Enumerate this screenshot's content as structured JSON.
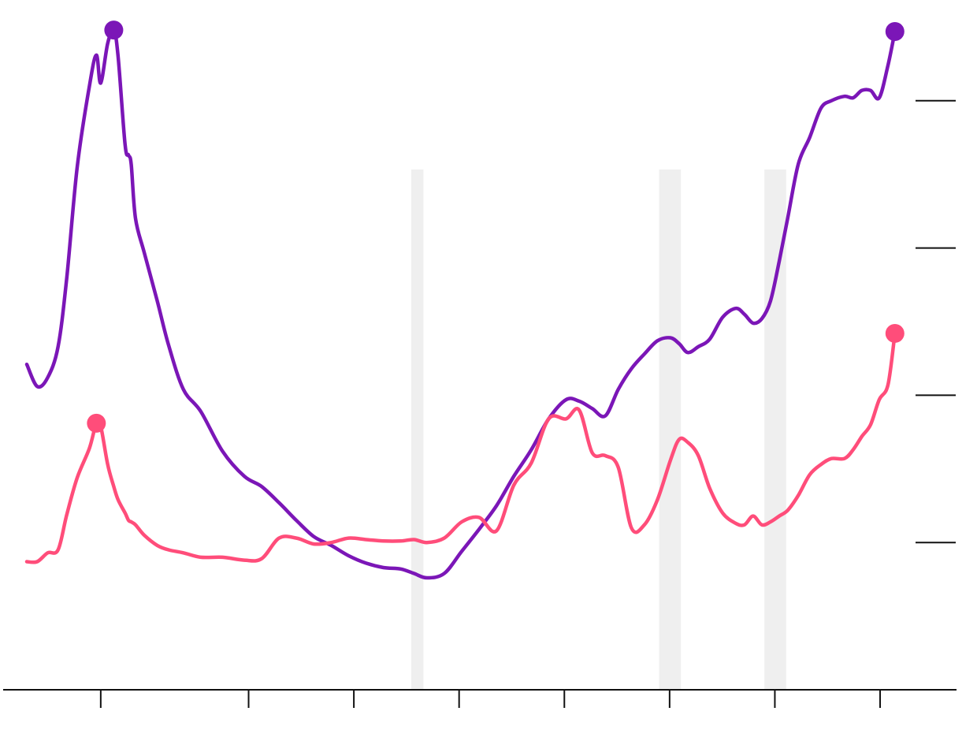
{
  "chart_data": {
    "type": "line",
    "title": "",
    "xlabel": "",
    "ylabel": "",
    "ylim": [
      0,
      4
    ],
    "xlim": [
      0,
      1
    ],
    "grid": false,
    "legend": "none",
    "y_ticks": [
      1,
      2,
      3,
      4
    ],
    "x_ticks": [
      0.085,
      0.255,
      0.376,
      0.497,
      0.618,
      0.739,
      0.86,
      0.981
    ],
    "shaded_bands": [
      {
        "x0": 0.442,
        "x1": 0.456
      },
      {
        "x0": 0.727,
        "x1": 0.752
      },
      {
        "x0": 0.848,
        "x1": 0.873
      }
    ],
    "series": [
      {
        "color": "#7b16b7",
        "end_markers": true,
        "points": [
          [
            0,
            2.21
          ],
          [
            0.012,
            2.06
          ],
          [
            0.024,
            2.12
          ],
          [
            0.036,
            2.33
          ],
          [
            0.046,
            2.8
          ],
          [
            0.058,
            3.55
          ],
          [
            0.072,
            4.1
          ],
          [
            0.08,
            4.31
          ],
          [
            0.085,
            4.12
          ],
          [
            0.093,
            4.39
          ],
          [
            0.1,
            4.48
          ],
          [
            0.105,
            4.3
          ],
          [
            0.113,
            3.7
          ],
          [
            0.117,
            3.63
          ],
          [
            0.12,
            3.57
          ],
          [
            0.125,
            3.2
          ],
          [
            0.135,
            2.97
          ],
          [
            0.15,
            2.64
          ],
          [
            0.163,
            2.34
          ],
          [
            0.18,
            2.04
          ],
          [
            0.2,
            1.89
          ],
          [
            0.225,
            1.62
          ],
          [
            0.25,
            1.45
          ],
          [
            0.27,
            1.38
          ],
          [
            0.29,
            1.27
          ],
          [
            0.31,
            1.15
          ],
          [
            0.33,
            1.04
          ],
          [
            0.35,
            0.98
          ],
          [
            0.37,
            0.91
          ],
          [
            0.39,
            0.86
          ],
          [
            0.41,
            0.83
          ],
          [
            0.43,
            0.82
          ],
          [
            0.445,
            0.79
          ],
          [
            0.46,
            0.76
          ],
          [
            0.48,
            0.79
          ],
          [
            0.5,
            0.94
          ],
          [
            0.52,
            1.09
          ],
          [
            0.54,
            1.25
          ],
          [
            0.56,
            1.45
          ],
          [
            0.58,
            1.63
          ],
          [
            0.6,
            1.84
          ],
          [
            0.62,
            1.97
          ],
          [
            0.635,
            1.96
          ],
          [
            0.65,
            1.91
          ],
          [
            0.665,
            1.86
          ],
          [
            0.68,
            2.04
          ],
          [
            0.695,
            2.18
          ],
          [
            0.71,
            2.28
          ],
          [
            0.725,
            2.37
          ],
          [
            0.74,
            2.39
          ],
          [
            0.75,
            2.35
          ],
          [
            0.76,
            2.29
          ],
          [
            0.772,
            2.33
          ],
          [
            0.785,
            2.38
          ],
          [
            0.8,
            2.53
          ],
          [
            0.815,
            2.59
          ],
          [
            0.825,
            2.55
          ],
          [
            0.835,
            2.49
          ],
          [
            0.845,
            2.52
          ],
          [
            0.855,
            2.64
          ],
          [
            0.865,
            2.91
          ],
          [
            0.875,
            3.21
          ],
          [
            0.887,
            3.57
          ],
          [
            0.9,
            3.75
          ],
          [
            0.913,
            3.95
          ],
          [
            0.925,
            4.0
          ],
          [
            0.94,
            4.03
          ],
          [
            0.95,
            4.02
          ],
          [
            0.96,
            4.07
          ],
          [
            0.97,
            4.07
          ],
          [
            0.98,
            4.02
          ],
          [
            0.99,
            4.24
          ],
          [
            0.998,
            4.47
          ]
        ]
      },
      {
        "color": "#ff4d7a",
        "end_markers": true,
        "points": [
          [
            0,
            0.87
          ],
          [
            0.012,
            0.87
          ],
          [
            0.024,
            0.93
          ],
          [
            0.036,
            0.95
          ],
          [
            0.046,
            1.19
          ],
          [
            0.058,
            1.44
          ],
          [
            0.072,
            1.64
          ],
          [
            0.08,
            1.81
          ],
          [
            0.085,
            1.79
          ],
          [
            0.093,
            1.53
          ],
          [
            0.1,
            1.38
          ],
          [
            0.105,
            1.29
          ],
          [
            0.113,
            1.2
          ],
          [
            0.117,
            1.15
          ],
          [
            0.12,
            1.14
          ],
          [
            0.125,
            1.12
          ],
          [
            0.135,
            1.05
          ],
          [
            0.15,
            0.98
          ],
          [
            0.163,
            0.95
          ],
          [
            0.18,
            0.93
          ],
          [
            0.2,
            0.9
          ],
          [
            0.225,
            0.9
          ],
          [
            0.25,
            0.88
          ],
          [
            0.27,
            0.89
          ],
          [
            0.29,
            1.03
          ],
          [
            0.31,
            1.03
          ],
          [
            0.33,
            0.99
          ],
          [
            0.35,
            1.0
          ],
          [
            0.37,
            1.03
          ],
          [
            0.39,
            1.02
          ],
          [
            0.41,
            1.01
          ],
          [
            0.43,
            1.01
          ],
          [
            0.445,
            1.02
          ],
          [
            0.46,
            1.0
          ],
          [
            0.48,
            1.03
          ],
          [
            0.5,
            1.14
          ],
          [
            0.52,
            1.17
          ],
          [
            0.54,
            1.08
          ],
          [
            0.56,
            1.39
          ],
          [
            0.58,
            1.54
          ],
          [
            0.6,
            1.84
          ],
          [
            0.62,
            1.84
          ],
          [
            0.635,
            1.9
          ],
          [
            0.65,
            1.61
          ],
          [
            0.665,
            1.59
          ],
          [
            0.68,
            1.51
          ],
          [
            0.695,
            1.1
          ],
          [
            0.71,
            1.12
          ],
          [
            0.725,
            1.29
          ],
          [
            0.74,
            1.56
          ],
          [
            0.75,
            1.7
          ],
          [
            0.76,
            1.68
          ],
          [
            0.772,
            1.59
          ],
          [
            0.785,
            1.37
          ],
          [
            0.8,
            1.2
          ],
          [
            0.815,
            1.13
          ],
          [
            0.825,
            1.12
          ],
          [
            0.835,
            1.18
          ],
          [
            0.845,
            1.12
          ],
          [
            0.855,
            1.14
          ],
          [
            0.865,
            1.18
          ],
          [
            0.875,
            1.22
          ],
          [
            0.887,
            1.32
          ],
          [
            0.9,
            1.46
          ],
          [
            0.913,
            1.53
          ],
          [
            0.925,
            1.57
          ],
          [
            0.94,
            1.57
          ],
          [
            0.95,
            1.63
          ],
          [
            0.96,
            1.72
          ],
          [
            0.97,
            1.8
          ],
          [
            0.98,
            1.97
          ],
          [
            0.99,
            2.07
          ],
          [
            0.998,
            2.42
          ]
        ]
      }
    ]
  }
}
